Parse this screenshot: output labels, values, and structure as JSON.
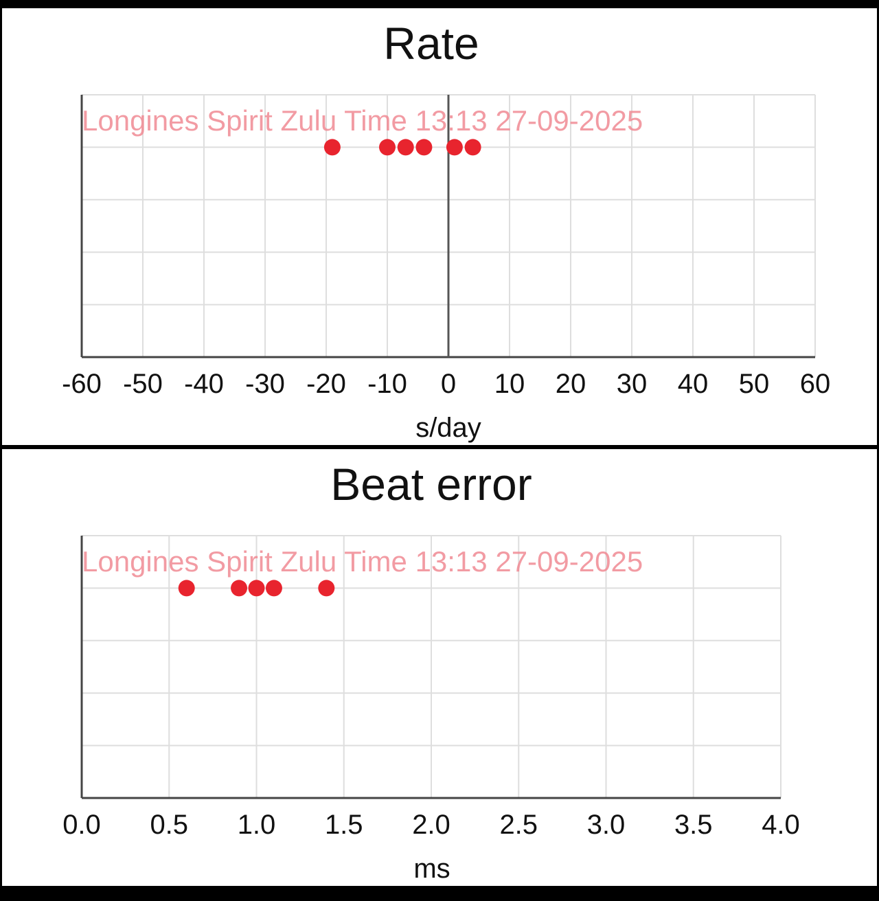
{
  "chart_data": [
    {
      "type": "scatter",
      "title": "Rate",
      "xlabel": "s/day",
      "ylabel": "",
      "annotation": "Longines Spirit Zulu Time 13:13 27-09-2025",
      "xlim": [
        -60,
        60
      ],
      "x_ticks": [
        "-60",
        "-50",
        "-40",
        "-30",
        "-20",
        "-10",
        "0",
        "10",
        "20",
        "30",
        "40",
        "50",
        "60"
      ],
      "grid": true,
      "point_color": "#e8242e",
      "series": [
        {
          "values": [
            -19,
            -10,
            -7,
            -4,
            1,
            4
          ]
        }
      ]
    },
    {
      "type": "scatter",
      "title": "Beat error",
      "xlabel": "ms",
      "ylabel": "",
      "annotation": "Longines Spirit Zulu Time 13:13 27-09-2025",
      "xlim": [
        0,
        4
      ],
      "x_ticks": [
        "0.0",
        "0.5",
        "1.0",
        "1.5",
        "2.0",
        "2.5",
        "3.0",
        "3.5",
        "4.0"
      ],
      "grid": true,
      "point_color": "#e8242e",
      "series": [
        {
          "values": [
            0.6,
            0.9,
            1.0,
            1.1,
            1.4
          ]
        }
      ]
    }
  ]
}
